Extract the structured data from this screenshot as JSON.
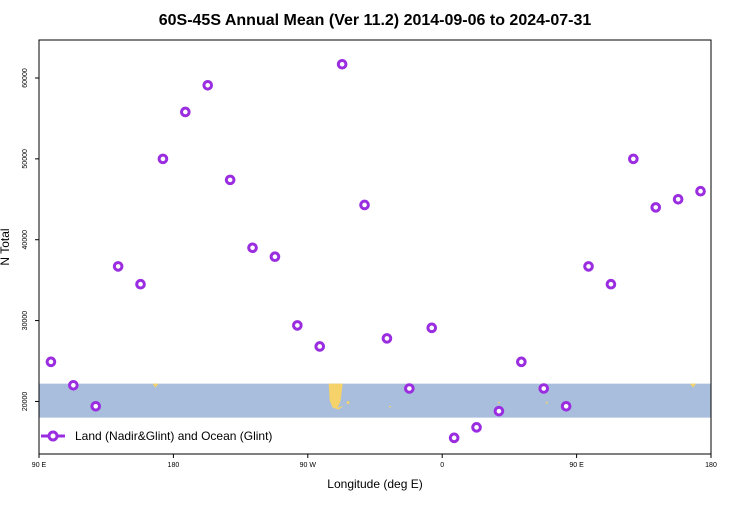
{
  "chart_data": {
    "type": "scatter",
    "title": "60S-45S Annual Mean (Ver 11.2)   2014-09-06 to 2024-07-31",
    "xlabel": "Longitude (deg E)",
    "ylabel": "N Total",
    "x_unwrapped_range": [
      90,
      540
    ],
    "xticks": [
      {
        "x": 90,
        "label": "90 E"
      },
      {
        "x": 180,
        "label": "180"
      },
      {
        "x": 270,
        "label": "90 W"
      },
      {
        "x": 360,
        "label": "0"
      },
      {
        "x": 450,
        "label": "90 E"
      },
      {
        "x": 540,
        "label": "180"
      }
    ],
    "ylim": [
      13500,
      64700
    ],
    "yticks": [
      20000,
      30000,
      40000,
      50000,
      60000
    ],
    "series": [
      {
        "name": "Land (Nadir&Glint) and Ocean (Glint)",
        "color": "#9b2de0",
        "x": [
          98,
          113,
          128,
          143,
          158,
          173,
          188,
          203,
          218,
          233,
          248,
          263,
          278,
          293,
          308,
          323,
          338,
          353,
          368,
          383,
          398,
          413,
          428,
          443,
          458,
          473,
          488,
          503,
          518,
          533
        ],
        "y": [
          24900,
          22000,
          19400,
          36700,
          34500,
          50000,
          55800,
          59100,
          47400,
          39000,
          37900,
          29400,
          26800,
          61700,
          44300,
          27800,
          21600,
          29100,
          15500,
          16800,
          18800,
          24900,
          21600,
          19400,
          36700,
          34500,
          50000,
          44000,
          45000,
          46000
        ]
      }
    ],
    "map_band": {
      "y_low": 18000,
      "y_high": 22200,
      "ocean_color": "#a8bedc",
      "land_color": "#f5d36a"
    },
    "legend": {
      "position": "bottom-left",
      "label": "Land (Nadir&Glint) and Ocean (Glint)"
    }
  }
}
